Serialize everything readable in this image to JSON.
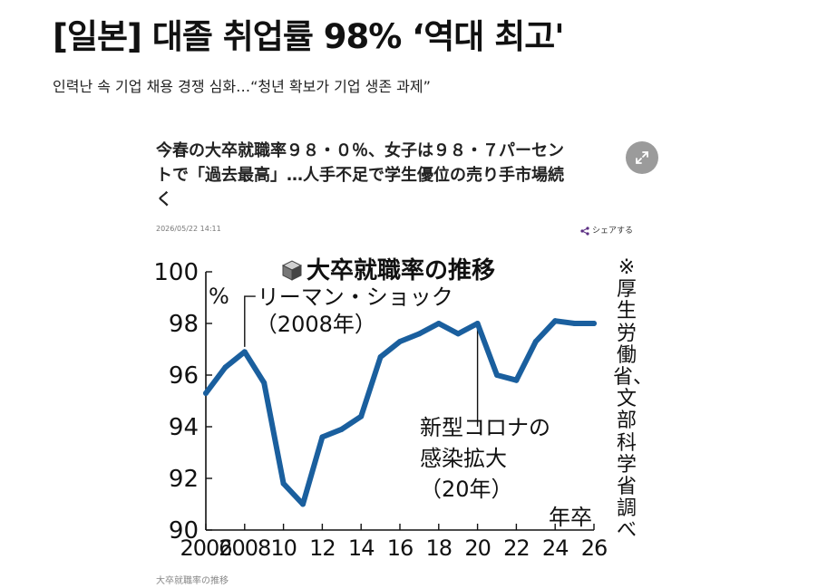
{
  "article": {
    "headline": "[일본] 대졸 취업률 98% ‘역대 최고'",
    "subhead": "인력난 속 기업 채용 경쟁 심화…“청년 확보가 기업 생존 과제”"
  },
  "embed": {
    "title_lines": [
      "今春の大卒就職率９８・０％、女子は９８・７パーセン",
      "トで「過去最高」…人手不足で学生優位の売り手市場続",
      "く"
    ],
    "date": "2026/05/22 14:11",
    "share_label": "シェアする",
    "expand_icon": "expand-arrows-icon",
    "share_icon": "share-icon",
    "caption": "大卒就職率の推移"
  },
  "chart_data": {
    "type": "line",
    "title": "大卒就職率の推移",
    "ylabel": "%",
    "xlabel": "年卒",
    "note": "※厚生労働省、文部科学省調べ",
    "ylim": [
      90,
      100
    ],
    "xlim": [
      2006,
      2026
    ],
    "yticks": [
      90,
      92,
      94,
      96,
      98,
      100
    ],
    "xticks": [
      2006,
      2008,
      10,
      12,
      14,
      16,
      18,
      20,
      22,
      24,
      26
    ],
    "x": [
      2006,
      2007,
      2008,
      2009,
      2010,
      2011,
      2012,
      2013,
      2014,
      2015,
      2016,
      2017,
      2018,
      2019,
      2020,
      2021,
      2022,
      2023,
      2024,
      2025,
      2026
    ],
    "values": [
      95.3,
      96.3,
      96.9,
      95.7,
      91.8,
      91.0,
      93.6,
      93.9,
      94.4,
      96.7,
      97.3,
      97.6,
      98.0,
      97.6,
      98.0,
      96.0,
      95.8,
      97.3,
      98.1,
      98.0,
      98.0
    ],
    "line_color": "#1a5f9e",
    "annotations": [
      {
        "lines": [
          "リーマン・ショック",
          "（2008年）"
        ],
        "x": 2008
      },
      {
        "lines": [
          "新型コロナの",
          "感染拡大",
          "（20年）"
        ],
        "x": 2020
      }
    ]
  }
}
